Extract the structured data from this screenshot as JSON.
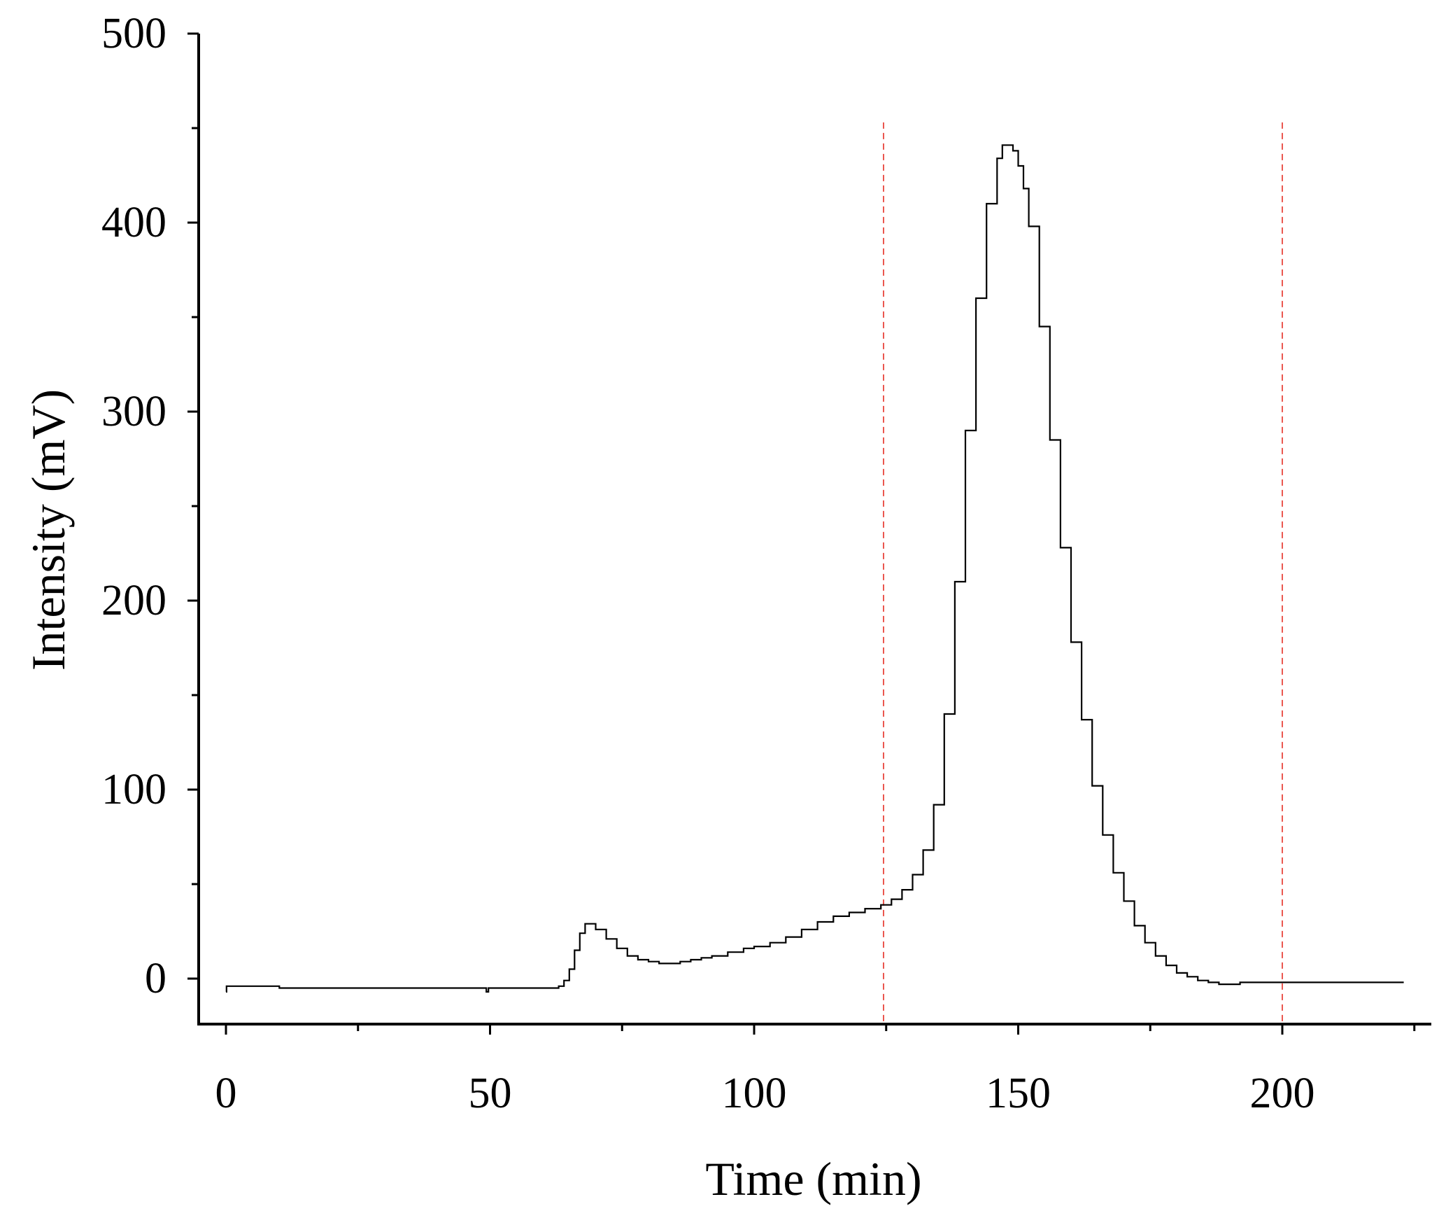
{
  "chart_data": {
    "type": "line",
    "title": "",
    "xlabel": "Time (min)",
    "ylabel": "Intensity (mV)",
    "xlim": [
      -5,
      230
    ],
    "ylim": [
      -25,
      500
    ],
    "x_ticks": [
      0,
      50,
      100,
      150,
      200
    ],
    "x_tick_labels": [
      "0",
      "50",
      "100",
      "150",
      "200"
    ],
    "x_minor_ticks": [
      25,
      75,
      125,
      175,
      225
    ],
    "y_ticks": [
      0,
      100,
      200,
      300,
      400,
      500
    ],
    "y_tick_labels": [
      "0",
      "100",
      "200",
      "300",
      "400",
      "500"
    ],
    "y_minor_ticks": [
      50,
      150,
      250,
      350,
      450
    ],
    "grid": false,
    "colors": {
      "line": "#000000",
      "marker_line": "#e8453c",
      "axis": "#000000"
    },
    "series": [
      {
        "x": [
          0,
          0.1,
          10,
          10.1,
          49,
          49.3,
          49.7,
          50,
          62.5,
          63,
          64,
          65,
          66,
          67,
          68,
          69,
          70,
          72,
          74,
          76,
          78,
          80,
          82,
          84,
          86,
          88,
          90,
          92,
          95,
          98,
          100,
          103,
          106,
          109,
          112,
          115,
          118,
          121,
          124,
          126,
          128,
          130,
          132,
          134,
          136,
          138,
          140,
          142,
          144,
          146,
          147,
          148,
          149,
          150,
          151,
          152,
          154,
          156,
          158,
          160,
          162,
          164,
          166,
          168,
          170,
          172,
          174,
          176,
          178,
          180,
          182,
          184,
          186,
          188,
          190,
          192,
          194,
          196,
          198,
          200,
          201,
          202,
          204,
          210,
          215,
          223
        ],
        "y": [
          -7,
          -4,
          -4,
          -5,
          -5,
          -7,
          -5,
          -5,
          -5,
          -4,
          -1,
          5,
          15,
          24,
          29,
          29,
          26,
          21,
          16,
          12,
          10,
          9,
          8,
          8,
          9,
          10,
          11,
          12,
          14,
          16,
          17,
          19,
          22,
          26,
          30,
          33,
          35,
          37,
          39,
          42,
          47,
          55,
          68,
          92,
          140,
          210,
          290,
          360,
          410,
          434,
          441,
          441,
          438,
          430,
          418,
          398,
          345,
          285,
          228,
          178,
          137,
          102,
          76,
          56,
          41,
          28,
          19,
          12,
          7,
          3,
          1,
          -1,
          -2,
          -3,
          -3,
          -2,
          -2,
          -2,
          -2,
          -2,
          -2,
          -2,
          -2,
          -2,
          -2,
          -2
        ]
      }
    ],
    "vertical_markers": [
      124.5,
      200
    ],
    "marker_y_top": 453
  }
}
